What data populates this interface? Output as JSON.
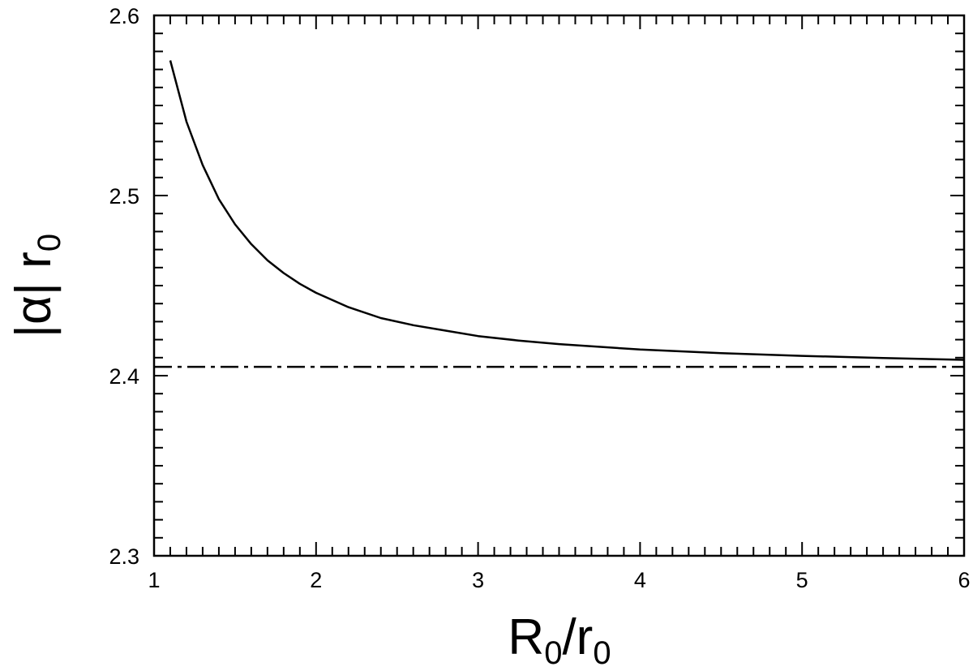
{
  "chart_data": {
    "type": "line",
    "xlabel": "R",
    "xlabel_sub": "0",
    "xlabel_mid": "/r",
    "xlabel_sub2": "0",
    "ylabel": "|α| r",
    "ylabel_sub": "0",
    "xlim": [
      1,
      6
    ],
    "ylim": [
      2.3,
      2.6
    ],
    "x_ticks": [
      "1",
      "2",
      "3",
      "4",
      "5",
      "6"
    ],
    "y_ticks": [
      "2.3",
      "2.4",
      "2.5",
      "2.6"
    ],
    "grid": false,
    "series": [
      {
        "style": "solid",
        "x": [
          1.1,
          1.2,
          1.3,
          1.4,
          1.5,
          1.6,
          1.7,
          1.8,
          1.9,
          2.0,
          2.2,
          2.4,
          2.6,
          2.8,
          3.0,
          3.25,
          3.5,
          4.0,
          4.5,
          5.0,
          5.5,
          6.0
        ],
        "y": [
          2.575,
          2.541,
          2.517,
          2.498,
          2.484,
          2.473,
          2.464,
          2.457,
          2.451,
          2.446,
          2.438,
          2.432,
          2.428,
          2.425,
          2.422,
          2.4195,
          2.4175,
          2.4145,
          2.4125,
          2.411,
          2.4098,
          2.4088
        ]
      },
      {
        "style": "dash-dot",
        "x": [
          1,
          6
        ],
        "y": [
          2.4049,
          2.4049
        ]
      }
    ]
  }
}
